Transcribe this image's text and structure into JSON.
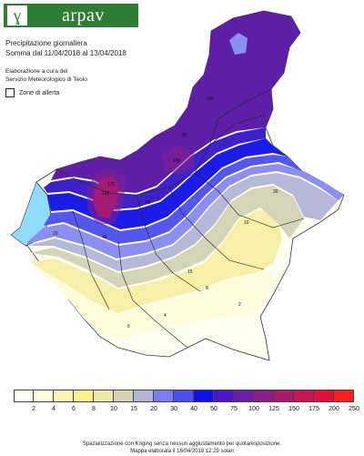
{
  "header": {
    "logo_text": "arpav",
    "logo_glyph": "ɣ",
    "title_line1": "Precipitazione giornaliera",
    "title_line2": "Somma dal 11/04/2018 al 13/04/2018",
    "credit_line1": "Elaborazione a cura del",
    "credit_line2": "Servizio Meteorologico di Teolo",
    "zone_toggle_label": "Zone di allerta"
  },
  "legend": {
    "ticks": [
      "2",
      "4",
      "6",
      "8",
      "10",
      "15",
      "20",
      "30",
      "40",
      "50",
      "75",
      "100",
      "125",
      "150",
      "175",
      "200",
      "250"
    ],
    "colors": [
      "#fffff0",
      "#fffbdc",
      "#fff5b8",
      "#fef08c",
      "#ece9a8",
      "#d2d2b4",
      "#b4b4d6",
      "#7a7cf0",
      "#4d4ff5",
      "#1010ee",
      "#4b16c4",
      "#6a1fa8",
      "#891d8a",
      "#a91a6f",
      "#c81553",
      "#e20f38",
      "#ff1d1d"
    ]
  },
  "footer": {
    "line1": "Spazializzazione con Kriging senza nessun aggiustamento per quota/esposizione.",
    "line2": "Mappa elaborata il 16/04/2018 12:29 solari"
  },
  "map": {
    "contour_labels": [
      "20",
      "40",
      "60",
      "80",
      "100",
      "125",
      "150",
      "175",
      "30",
      "15",
      "10",
      "8",
      "6",
      "4",
      "2"
    ],
    "zone_colors": {
      "lake": "#8fdcff",
      "very_high": "#c0195c",
      "high": "#5f1ea8",
      "mid_high": "#3e22c9",
      "mid": "#1c1ce8",
      "mid_low": "#5456f0",
      "low": "#8c8ff2",
      "lowish": "#b6b8d8",
      "grayish": "#d4d4b8",
      "yellow": "#f6efa8",
      "pale": "#fffbdc",
      "palest": "#fffff0"
    }
  }
}
